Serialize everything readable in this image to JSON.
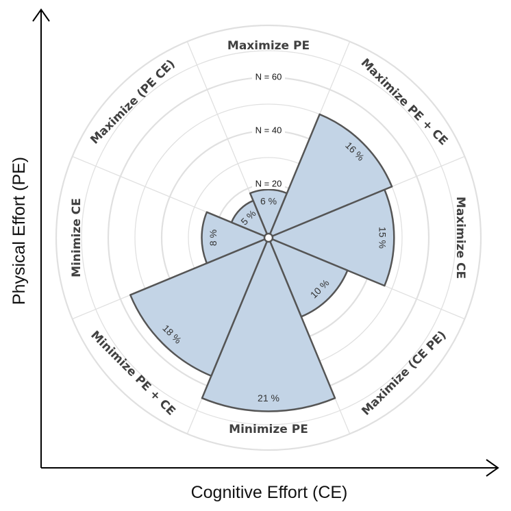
{
  "axes": {
    "x_label": "Cognitive Effort (CE)",
    "y_label": "Physical Effort (PE)"
  },
  "chart_data": {
    "type": "polar-bar",
    "title": "",
    "radial_ticks": [
      {
        "value": 20,
        "label": "N = 20"
      },
      {
        "value": 40,
        "label": "N = 40"
      },
      {
        "value": 60,
        "label": "N = 60"
      }
    ],
    "categories": [
      "Maximize PE",
      "Maximize PE + CE",
      "Maximize CE",
      "Maximize (CE PE)",
      "Minimize PE",
      "Minimize PE + CE",
      "Minimize CE",
      "Maximize (PE CE)"
    ],
    "series": [
      {
        "values": [
          18,
          50,
          47,
          32,
          65,
          56,
          25,
          15
        ],
        "percent_labels": [
          "6 %",
          "16 %",
          "15 %",
          "10 %",
          "21 %",
          "18 %",
          "8 %",
          "5 %"
        ]
      }
    ],
    "colors": {
      "fill": "#c3d4e6",
      "stroke": "#555555",
      "grid": "#e0e0e0"
    }
  }
}
